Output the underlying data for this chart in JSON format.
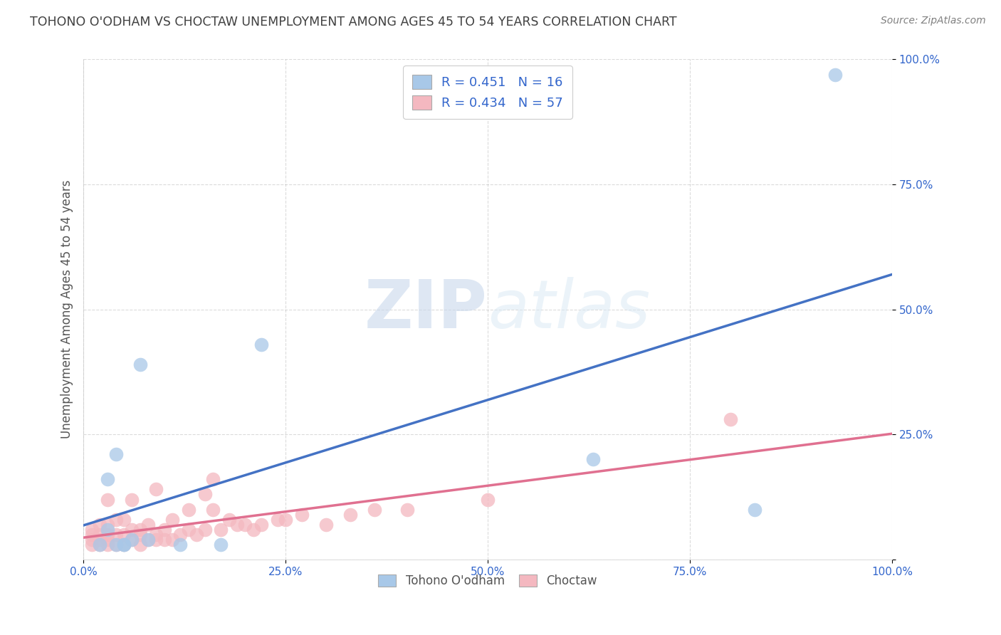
{
  "title": "TOHONO O'ODHAM VS CHOCTAW UNEMPLOYMENT AMONG AGES 45 TO 54 YEARS CORRELATION CHART",
  "source": "Source: ZipAtlas.com",
  "ylabel": "Unemployment Among Ages 45 to 54 years",
  "xlim": [
    0,
    1.0
  ],
  "ylim": [
    0,
    1.0
  ],
  "xticks": [
    0.0,
    0.25,
    0.5,
    0.75,
    1.0
  ],
  "yticks": [
    0.0,
    0.25,
    0.5,
    0.75,
    1.0
  ],
  "xticklabels": [
    "0.0%",
    "25.0%",
    "50.0%",
    "75.0%",
    "100.0%"
  ],
  "yticklabels": [
    "0.0%",
    "25.0%",
    "50.0%",
    "75.0%",
    "100.0%"
  ],
  "legend_labels": [
    "Tohono O'odham",
    "Choctaw"
  ],
  "legend_R": [
    0.451,
    0.434
  ],
  "legend_N": [
    16,
    57
  ],
  "blue_scatter_color": "#a8c8e8",
  "pink_scatter_color": "#f4b8c0",
  "blue_line_color": "#4472c4",
  "pink_line_color": "#e07090",
  "legend_text_color": "#3366cc",
  "watermark_zip": "ZIP",
  "watermark_atlas": "atlas",
  "watermark_color": "#dce8f4",
  "background_color": "#ffffff",
  "grid_color": "#b8b8b8",
  "title_color": "#404040",
  "source_color": "#808080",
  "tohono_x": [
    0.02,
    0.03,
    0.03,
    0.04,
    0.04,
    0.05,
    0.05,
    0.06,
    0.07,
    0.08,
    0.12,
    0.17,
    0.22,
    0.63,
    0.83,
    0.93
  ],
  "tohono_y": [
    0.03,
    0.16,
    0.06,
    0.03,
    0.21,
    0.03,
    0.03,
    0.04,
    0.39,
    0.04,
    0.03,
    0.03,
    0.43,
    0.2,
    0.1,
    0.97
  ],
  "choctaw_x": [
    0.01,
    0.01,
    0.01,
    0.01,
    0.02,
    0.02,
    0.02,
    0.02,
    0.03,
    0.03,
    0.03,
    0.03,
    0.03,
    0.04,
    0.04,
    0.04,
    0.05,
    0.05,
    0.05,
    0.06,
    0.06,
    0.06,
    0.07,
    0.07,
    0.07,
    0.08,
    0.08,
    0.09,
    0.09,
    0.09,
    0.1,
    0.1,
    0.11,
    0.11,
    0.12,
    0.13,
    0.13,
    0.14,
    0.15,
    0.15,
    0.16,
    0.16,
    0.17,
    0.18,
    0.19,
    0.2,
    0.21,
    0.22,
    0.24,
    0.25,
    0.27,
    0.3,
    0.33,
    0.36,
    0.4,
    0.5,
    0.8
  ],
  "choctaw_y": [
    0.03,
    0.04,
    0.05,
    0.06,
    0.03,
    0.04,
    0.05,
    0.07,
    0.03,
    0.04,
    0.05,
    0.07,
    0.12,
    0.03,
    0.05,
    0.08,
    0.03,
    0.05,
    0.08,
    0.04,
    0.06,
    0.12,
    0.03,
    0.05,
    0.06,
    0.04,
    0.07,
    0.04,
    0.05,
    0.14,
    0.04,
    0.06,
    0.04,
    0.08,
    0.05,
    0.06,
    0.1,
    0.05,
    0.06,
    0.13,
    0.1,
    0.16,
    0.06,
    0.08,
    0.07,
    0.07,
    0.06,
    0.07,
    0.08,
    0.08,
    0.09,
    0.07,
    0.09,
    0.1,
    0.1,
    0.12,
    0.28
  ]
}
